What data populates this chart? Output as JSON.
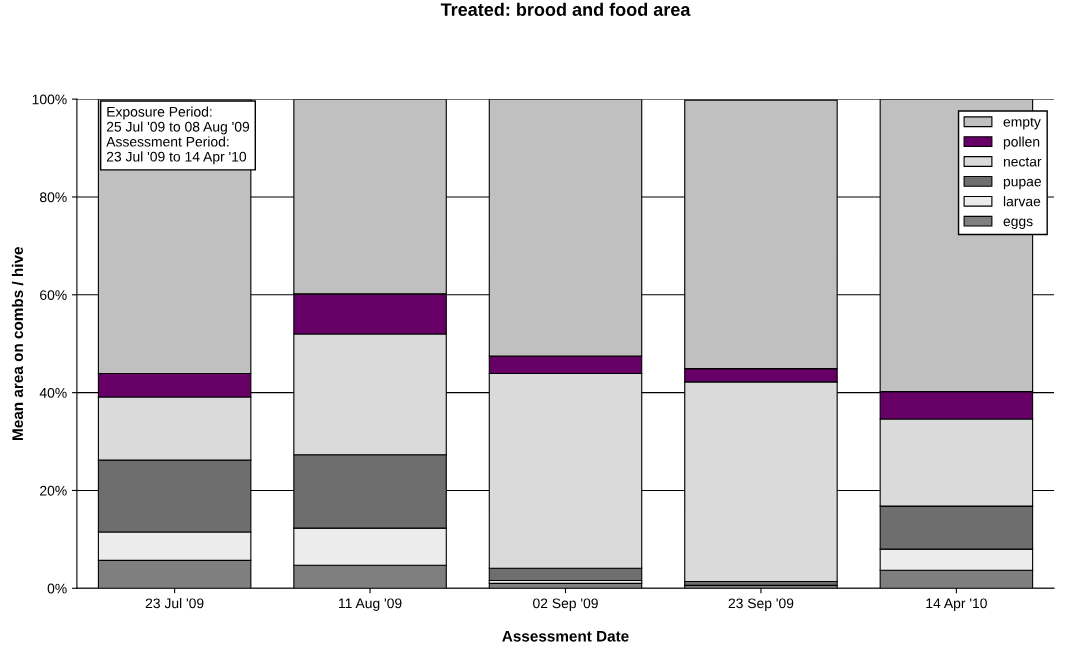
{
  "chart_data": {
    "type": "bar",
    "title": "Treated: brood and food area",
    "xlabel": "Assessment Date",
    "ylabel": "Mean area on combs / hive",
    "categories": [
      "23 Jul '09",
      "11 Aug '09",
      "02 Sep '09",
      "23 Sep '09",
      "14 Apr '10"
    ],
    "stacked": true,
    "series": [
      {
        "name": "eggs",
        "color": "#7f7f7f",
        "values": [
          5.7,
          4.7,
          1.0,
          0.6,
          3.7
        ]
      },
      {
        "name": "larvae",
        "color": "#ececec",
        "values": [
          5.8,
          7.6,
          0.6,
          null,
          4.3
        ]
      },
      {
        "name": "pupae",
        "color": "#6e6e6e",
        "values": [
          14.7,
          15.0,
          2.5,
          0.8,
          8.8
        ]
      },
      {
        "name": "nectar",
        "color": "#dadada",
        "values": [
          12.9,
          24.7,
          39.8,
          40.8,
          17.8
        ]
      },
      {
        "name": "pollen",
        "color": "#660066",
        "values": [
          4.8,
          8.2,
          3.6,
          2.7,
          5.6
        ]
      },
      {
        "name": "empty",
        "color": "#c0c0c0",
        "values": [
          56.1,
          39.8,
          52.5,
          54.9,
          59.8
        ]
      }
    ],
    "ylim": [
      0,
      100
    ],
    "yticks": [
      {
        "value": 0,
        "label": "0%"
      },
      {
        "value": 20,
        "label": "20%"
      },
      {
        "value": 40,
        "label": "40%"
      },
      {
        "value": 60,
        "label": "60%"
      },
      {
        "value": 80,
        "label": "80%"
      },
      {
        "value": 100,
        "label": "100%"
      }
    ],
    "grid": "y",
    "legend": "top right",
    "annotations": [
      "Exposure Period:\n25 Jul '09 to 08 Aug '09\nAssessment Period:\n23 Jul '09 to 14 Apr '10"
    ]
  }
}
